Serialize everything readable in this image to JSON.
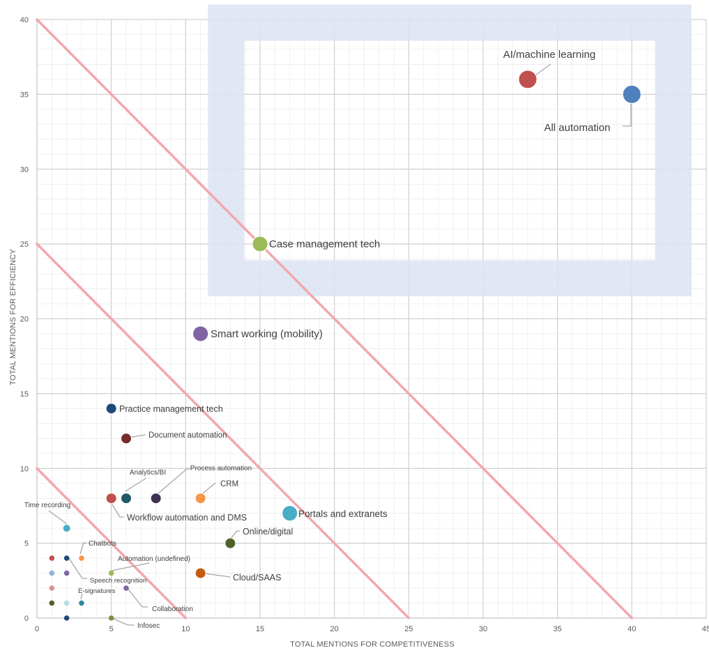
{
  "chart_data": {
    "type": "scatter",
    "title": "",
    "xlabel": "TOTAL MENTIONS FOR COMPETITIVENESS",
    "ylabel": "TOTAL MENTIONS FOR EFFICIENCY",
    "xlim": [
      0,
      45
    ],
    "ylim": [
      0,
      40
    ],
    "xticks": [
      "0",
      "5",
      "10",
      "15",
      "20",
      "25",
      "30",
      "35",
      "40",
      "45"
    ],
    "yticks": [
      "0",
      "5",
      "10",
      "15",
      "20",
      "25",
      "30",
      "35",
      "40"
    ],
    "grid": true,
    "highlight_region": {
      "x": [
        11.5,
        44
      ],
      "y": [
        21.5,
        41
      ],
      "color": "#dce3f3"
    },
    "reference_lines": [
      {
        "x_intercept": 10,
        "y_intercept": 10,
        "color": "#f2a7ad"
      },
      {
        "x_intercept": 25,
        "y_intercept": 25,
        "color": "#f2a7ad"
      },
      {
        "x_intercept": 40,
        "y_intercept": 40,
        "color": "#f2a7ad"
      }
    ],
    "points": [
      {
        "name": "AI/machine learning",
        "x": 33,
        "y": 36,
        "color": "#c0504d",
        "size": "large",
        "label": "AI/machine learning"
      },
      {
        "name": "All automation",
        "x": 40,
        "y": 35,
        "color": "#4f81bd",
        "size": "large",
        "label": "All automation"
      },
      {
        "name": "Case management tech",
        "x": 15,
        "y": 25,
        "color": "#9bbb59",
        "size": "medium",
        "label": "Case management tech"
      },
      {
        "name": "Smart working (mobility)",
        "x": 11,
        "y": 19,
        "color": "#8064a2",
        "size": "medium",
        "label": "Smart working (mobility)"
      },
      {
        "name": "Practice management tech",
        "x": 5,
        "y": 14,
        "color": "#1f497d",
        "size": "small",
        "label": "Practice management tech"
      },
      {
        "name": "Document automation",
        "x": 6,
        "y": 12,
        "color": "#772c2a",
        "size": "small",
        "label": "Document  automation"
      },
      {
        "name": "Analytics/BI",
        "x": 6,
        "y": 8,
        "color": "#215968",
        "size": "small",
        "label": "Analytics/BI"
      },
      {
        "name": "Process automation",
        "x": 8,
        "y": 8,
        "color": "#403151",
        "size": "small",
        "label": "Process automation"
      },
      {
        "name": "Workflow automation and DMS",
        "x": 5,
        "y": 8,
        "color": "#c0504d",
        "size": "small",
        "label": "Workflow automation and DMS"
      },
      {
        "name": "CRM",
        "x": 11,
        "y": 8,
        "color": "#f79646",
        "size": "small",
        "label": "CRM"
      },
      {
        "name": "Portals and extranets",
        "x": 17,
        "y": 7,
        "color": "#4bacc6",
        "size": "medium",
        "label": "Portals and extranets"
      },
      {
        "name": "Online/digital",
        "x": 13,
        "y": 5,
        "color": "#4f6228",
        "size": "small",
        "label": "Online/digital"
      },
      {
        "name": "Cloud/SAAS",
        "x": 11,
        "y": 3,
        "color": "#c55a11",
        "size": "small",
        "label": "Cloud/SAAS"
      },
      {
        "name": "Time recording",
        "x": 2,
        "y": 6,
        "color": "#4bacc6",
        "size": "tiny",
        "label": "Time recording"
      },
      {
        "name": "Chatbots",
        "x": 3,
        "y": 4,
        "color": "#f79646",
        "size": "dot",
        "label": "Chatbots"
      },
      {
        "name": "Automation (undefined)",
        "x": 5,
        "y": 3,
        "color": "#9bbb59",
        "size": "dot",
        "label": "Automation (undefined)"
      },
      {
        "name": "Speech recognition",
        "x": 2,
        "y": 3,
        "color": "#8064a2",
        "size": "dot",
        "label": "Speech recognition"
      },
      {
        "name": "E-signatures",
        "x": 3,
        "y": 1,
        "color": "#31859c",
        "size": "dot",
        "label": "E-signatures"
      },
      {
        "name": "Collaboration",
        "x": 6,
        "y": 2,
        "color": "#8064a2",
        "size": "dot",
        "label": "Collaboration"
      },
      {
        "name": "Infosec",
        "x": 5,
        "y": 0,
        "color": "#77933c",
        "size": "dot",
        "label": "Infosec"
      },
      {
        "name": "",
        "x": 1,
        "y": 4,
        "color": "#c0504d",
        "size": "dot",
        "label": ""
      },
      {
        "name": "",
        "x": 2,
        "y": 4,
        "color": "#1f497d",
        "size": "dot",
        "label": ""
      },
      {
        "name": "",
        "x": 1,
        "y": 3,
        "color": "#95b3d7",
        "size": "dot",
        "label": ""
      },
      {
        "name": "",
        "x": 1,
        "y": 2,
        "color": "#d99694",
        "size": "dot",
        "label": ""
      },
      {
        "name": "",
        "x": 1,
        "y": 1,
        "color": "#4f6228",
        "size": "dot",
        "label": ""
      },
      {
        "name": "",
        "x": 2,
        "y": 1,
        "color": "#b7dde8",
        "size": "dot",
        "label": ""
      },
      {
        "name": "",
        "x": 2,
        "y": 0,
        "color": "#1f497d",
        "size": "dot",
        "label": ""
      }
    ]
  }
}
